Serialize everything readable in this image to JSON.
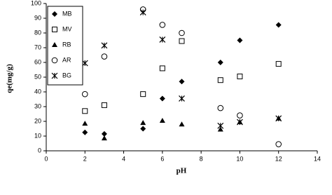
{
  "chart_data": {
    "type": "scatter",
    "xlabel": "pH",
    "ylabel": "qe(mg/g)",
    "x": [
      2,
      3,
      5,
      6,
      7,
      9,
      10,
      12
    ],
    "series": [
      {
        "name": "MB",
        "color": "#000000",
        "marker": "diamond",
        "values": [
          12.5,
          11.5,
          15,
          35.5,
          47,
          60,
          75,
          85.5
        ]
      },
      {
        "name": "MV",
        "color": "#000000",
        "marker": "square",
        "values": [
          27,
          31,
          38.5,
          56,
          74.5,
          48,
          50.5,
          59
        ]
      },
      {
        "name": "RB",
        "color": "#000000",
        "marker": "triangle",
        "values": [
          18.5,
          8.5,
          19,
          20.5,
          18,
          14.5,
          19.5,
          22
        ]
      },
      {
        "name": "AR",
        "color": "#000000",
        "marker": "circle",
        "values": [
          38.5,
          64,
          96,
          85.5,
          80,
          29,
          24,
          4.5
        ]
      },
      {
        "name": "BG",
        "color": "#000000",
        "marker": "asterisk",
        "values": [
          59.5,
          71.5,
          94,
          75.5,
          35.5,
          17,
          19.5,
          22
        ]
      }
    ],
    "xlim": [
      0,
      14
    ],
    "xticks": [
      0,
      2,
      4,
      6,
      8,
      10,
      12,
      14
    ],
    "ylim": [
      0,
      100
    ],
    "yticks": [
      0,
      10,
      20,
      30,
      40,
      50,
      60,
      70,
      80,
      90,
      100
    ],
    "legend": "upper left"
  }
}
